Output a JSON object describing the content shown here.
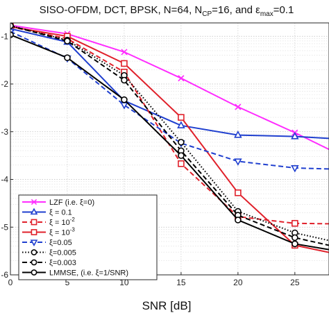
{
  "chart_data": {
    "type": "line",
    "title": {
      "main": "SISO-OFDM, DCT, BPSK, N=64, N",
      "cp_sub": "CP",
      "mid": "=16, and ",
      "eps": "ε",
      "max_sub": "max",
      "end": "=0.1"
    },
    "xlabel": "SNR [dB]",
    "ylabel": "",
    "xlim": [
      0,
      28
    ],
    "ylim": [
      -6,
      -0.72
    ],
    "x_ticks": [
      0,
      5,
      10,
      15,
      20,
      25
    ],
    "x_tick_labels": [
      "0",
      "5",
      "10",
      "15",
      "20",
      "25"
    ],
    "y_ticks": [
      -1,
      -2,
      -3,
      -4,
      -5,
      -6
    ],
    "y_tick_labels": [
      "-1",
      "-2",
      "-3",
      "-4",
      "-5",
      "-6"
    ],
    "grid": true,
    "legend_position": "bottom-left",
    "series": [
      {
        "name": "LZF (i.e. ξ=0)",
        "color": "#ff2cff",
        "dash": "solid",
        "marker": "x",
        "x": [
          0,
          5,
          10,
          15,
          20,
          25,
          28
        ],
        "y": [
          -0.77,
          -0.95,
          -1.33,
          -1.88,
          -2.48,
          -3.02,
          -3.37
        ]
      },
      {
        "name": "ξ = 0.1",
        "color": "#1f3fcf",
        "dash": "solid",
        "marker": "triangle-up",
        "x": [
          0,
          5,
          10,
          15,
          20,
          25,
          28
        ],
        "y": [
          -0.84,
          -1.12,
          -2.35,
          -2.87,
          -3.07,
          -3.1,
          -3.14
        ]
      },
      {
        "name": "ξ = 10",
        "name_sup": "-2",
        "color": "#e0202a",
        "dash": "dashed",
        "marker": "square",
        "x": [
          0,
          5,
          10,
          15,
          20,
          25,
          28
        ],
        "y": [
          -0.8,
          -1.05,
          -1.75,
          -3.67,
          -4.78,
          -4.92,
          -4.93
        ]
      },
      {
        "name": "ξ = 10",
        "name_sup": "-3",
        "color": "#e0202a",
        "dash": "solid",
        "marker": "square",
        "x": [
          0,
          5,
          10,
          15,
          20,
          25,
          28
        ],
        "y": [
          -0.8,
          -1.0,
          -1.57,
          -2.7,
          -4.28,
          -5.38,
          -5.53
        ]
      },
      {
        "name": "ξ=0.05",
        "color": "#1f3fcf",
        "dash": "dashed",
        "marker": "triangle-down",
        "x": [
          0,
          5,
          10,
          15,
          20,
          25,
          28
        ],
        "y": [
          -0.9,
          -1.46,
          -2.44,
          -3.24,
          -3.62,
          -3.76,
          -3.78
        ]
      },
      {
        "name": "ξ=0.005",
        "color": "#000000",
        "dash": "dotted",
        "marker": "circle",
        "x": [
          0,
          5,
          10,
          15,
          20,
          25,
          28
        ],
        "y": [
          -0.78,
          -1.08,
          -1.82,
          -3.22,
          -4.67,
          -5.12,
          -5.28
        ]
      },
      {
        "name": "ξ=0.003",
        "color": "#000000",
        "dash": "dashed",
        "marker": "circle",
        "x": [
          0,
          5,
          10,
          15,
          20,
          25,
          28
        ],
        "y": [
          -0.78,
          -1.1,
          -1.92,
          -3.4,
          -4.75,
          -5.22,
          -5.38
        ]
      },
      {
        "name": "LMMSE, (i.e. ξ=1/SNR)",
        "color": "#000000",
        "dash": "solid",
        "marker": "circle",
        "x": [
          0,
          5,
          10,
          15,
          20,
          25,
          28
        ],
        "y": [
          -0.97,
          -1.45,
          -2.33,
          -3.5,
          -4.85,
          -5.35,
          -5.47
        ]
      }
    ]
  }
}
